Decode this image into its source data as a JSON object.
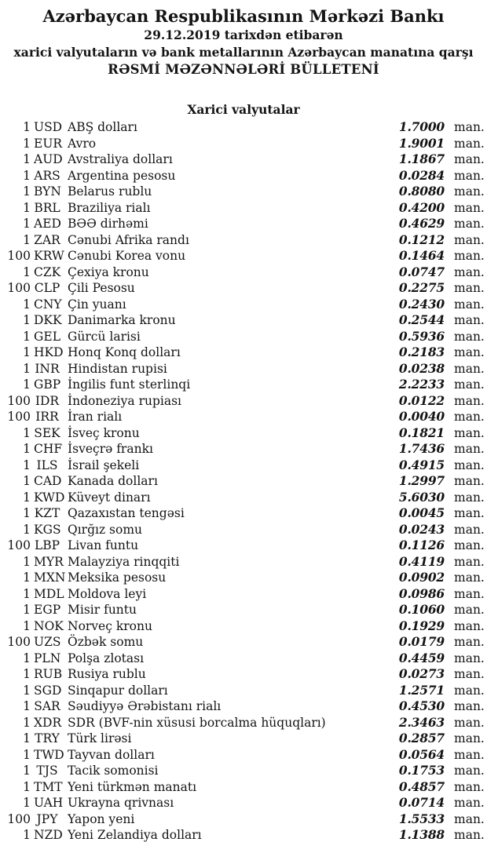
{
  "header": {
    "title": "Azərbaycan Respublikasının Mərkəzi Bankı",
    "date_line": "29.12.2019 tarixdən etibarən",
    "subtitle": "xarici valyutaların və bank metallarının Azərbaycan manatına qarşı",
    "bulletin_line": "RƏSMİ MƏZƏNNƏLƏRİ BÜLLETENİ"
  },
  "section": {
    "title": "Xarici valyutalar"
  },
  "unit_label": "man.",
  "text_color": "#141414",
  "background_color": "#ffffff",
  "rates": [
    {
      "qty": "1",
      "code": "USD",
      "name": "ABŞ dolları",
      "rate": "1.7000"
    },
    {
      "qty": "1",
      "code": "EUR",
      "name": "Avro",
      "rate": "1.9001"
    },
    {
      "qty": "1",
      "code": "AUD",
      "name": "Avstraliya dolları",
      "rate": "1.1867"
    },
    {
      "qty": "1",
      "code": "ARS",
      "name": "Argentina pesosu",
      "rate": "0.0284"
    },
    {
      "qty": "1",
      "code": "BYN",
      "name": "Belarus rublu",
      "rate": "0.8080"
    },
    {
      "qty": "1",
      "code": "BRL",
      "name": "Braziliya rialı",
      "rate": "0.4200"
    },
    {
      "qty": "1",
      "code": "AED",
      "name": "BƏƏ dirhəmi",
      "rate": "0.4629"
    },
    {
      "qty": "1",
      "code": "ZAR",
      "name": "Cənubi Afrika randı",
      "rate": "0.1212"
    },
    {
      "qty": "100",
      "code": "KRW",
      "name": "Cənubi Korea vonu",
      "rate": "0.1464"
    },
    {
      "qty": "1",
      "code": "CZK",
      "name": "Çexiya kronu",
      "rate": "0.0747"
    },
    {
      "qty": "100",
      "code": "CLP",
      "name": "Çili Pesosu",
      "rate": "0.2275"
    },
    {
      "qty": "1",
      "code": "CNY",
      "name": "Çin yuanı",
      "rate": "0.2430"
    },
    {
      "qty": "1",
      "code": "DKK",
      "name": "Danimarka kronu",
      "rate": "0.2544"
    },
    {
      "qty": "1",
      "code": "GEL",
      "name": "Gürcü larisi",
      "rate": "0.5936"
    },
    {
      "qty": "1",
      "code": "HKD",
      "name": "Honq Konq dolları",
      "rate": "0.2183"
    },
    {
      "qty": "1",
      "code": "INR",
      "name": "Hindistan rupisi",
      "rate": "0.0238"
    },
    {
      "qty": "1",
      "code": "GBP",
      "name": "İngilis funt sterlinqi",
      "rate": "2.2233"
    },
    {
      "qty": "100",
      "code": "IDR",
      "name": "İndoneziya rupiası",
      "rate": "0.0122"
    },
    {
      "qty": "100",
      "code": "IRR",
      "name": "İran rialı",
      "rate": "0.0040"
    },
    {
      "qty": "1",
      "code": "SEK",
      "name": "İsveç kronu",
      "rate": "0.1821"
    },
    {
      "qty": "1",
      "code": "CHF",
      "name": "İsveçrə frankı",
      "rate": "1.7436"
    },
    {
      "qty": "1",
      "code": "ILS",
      "name": "İsrail şekeli",
      "rate": "0.4915"
    },
    {
      "qty": "1",
      "code": "CAD",
      "name": "Kanada dolları",
      "rate": "1.2997"
    },
    {
      "qty": "1",
      "code": "KWD",
      "name": "Küveyt dinarı",
      "rate": "5.6030"
    },
    {
      "qty": "1",
      "code": "KZT",
      "name": "Qazaxıstan tengəsi",
      "rate": "0.0045"
    },
    {
      "qty": "1",
      "code": "KGS",
      "name": "Qırğız somu",
      "rate": "0.0243"
    },
    {
      "qty": "100",
      "code": "LBP",
      "name": "Livan funtu",
      "rate": "0.1126"
    },
    {
      "qty": "1",
      "code": "MYR",
      "name": "Malayziya rinqqiti",
      "rate": "0.4119"
    },
    {
      "qty": "1",
      "code": "MXN",
      "name": "Meksika pesosu",
      "rate": "0.0902"
    },
    {
      "qty": "1",
      "code": "MDL",
      "name": "Moldova leyi",
      "rate": "0.0986"
    },
    {
      "qty": "1",
      "code": "EGP",
      "name": "Misir funtu",
      "rate": "0.1060"
    },
    {
      "qty": "1",
      "code": "NOK",
      "name": "Norveç kronu",
      "rate": "0.1929"
    },
    {
      "qty": "100",
      "code": "UZS",
      "name": "Özbək somu",
      "rate": "0.0179"
    },
    {
      "qty": "1",
      "code": "PLN",
      "name": "Polşa zlotası",
      "rate": "0.4459"
    },
    {
      "qty": "1",
      "code": "RUB",
      "name": "Rusiya rublu",
      "rate": "0.0273"
    },
    {
      "qty": "1",
      "code": "SGD",
      "name": "Sinqapur dolları",
      "rate": "1.2571"
    },
    {
      "qty": "1",
      "code": "SAR",
      "name": "Səudiyyə Ərəbistanı rialı",
      "rate": "0.4530"
    },
    {
      "qty": "1",
      "code": "XDR",
      "name": "SDR (BVF-nin xüsusi borcalma hüquqları)",
      "rate": "2.3463"
    },
    {
      "qty": "1",
      "code": "TRY",
      "name": "Türk lirəsi",
      "rate": "0.2857"
    },
    {
      "qty": "1",
      "code": "TWD",
      "name": "Tayvan dolları",
      "rate": "0.0564"
    },
    {
      "qty": "1",
      "code": "TJS",
      "name": "Tacik somonisi",
      "rate": "0.1753"
    },
    {
      "qty": "1",
      "code": "TMT",
      "name": "Yeni türkmən manatı",
      "rate": "0.4857"
    },
    {
      "qty": "1",
      "code": "UAH",
      "name": "Ukrayna qrivnası",
      "rate": "0.0714"
    },
    {
      "qty": "100",
      "code": "JPY",
      "name": "Yapon yeni",
      "rate": "1.5533"
    },
    {
      "qty": "1",
      "code": "NZD",
      "name": "Yeni Zelandiya dolları",
      "rate": "1.1388"
    }
  ]
}
